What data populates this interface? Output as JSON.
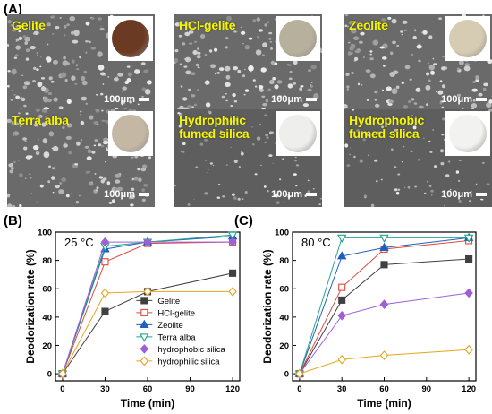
{
  "panel_labels": {
    "a": "(A)",
    "b": "(B)",
    "c": "(C)"
  },
  "sem_images": [
    {
      "label": "Gelite",
      "scale": "100μm",
      "sample_color": "#6b3a22"
    },
    {
      "label": "HCl-gelite",
      "scale": "100μm",
      "sample_color": "#b7b09c"
    },
    {
      "label": "Zeolite",
      "scale": "100μm",
      "sample_color": "#d6ccb4"
    },
    {
      "label": "Terra alba",
      "scale": "100μm",
      "sample_color": "#c4b8a4"
    },
    {
      "label": "Hydrophilic\nfumed silica",
      "scale": "100μm",
      "sample_color": "#eeeeec"
    },
    {
      "label": "Hydrophobic\nfumed silica",
      "scale": "100μm",
      "sample_color": "#f2f2f0"
    }
  ],
  "chart_data": [
    {
      "type": "line",
      "annotation": "25 °C",
      "xlabel": "Time (min)",
      "ylabel": "Deodorization rate (%)",
      "x": [
        0,
        30,
        60,
        120
      ],
      "xticks": [
        0,
        30,
        60,
        90,
        120
      ],
      "yticks": [
        0,
        20,
        40,
        60,
        80,
        100
      ],
      "xlim": [
        -5,
        125
      ],
      "ylim": [
        -5,
        100
      ],
      "legend_position": "bottom-right",
      "series": [
        {
          "name": "Gelite",
          "values": [
            0,
            44,
            58,
            71
          ],
          "color": "#404040",
          "marker": "square",
          "fill": true
        },
        {
          "name": "HCl-gelite",
          "values": [
            0,
            79,
            92,
            93
          ],
          "color": "#e0493e",
          "marker": "square",
          "fill": false
        },
        {
          "name": "Zeolite",
          "values": [
            0,
            88,
            93,
            97
          ],
          "color": "#1f5fbf",
          "marker": "triangle",
          "fill": true
        },
        {
          "name": "Terra alba",
          "values": [
            0,
            90,
            93,
            98
          ],
          "color": "#22a58a",
          "marker": "triangle-down",
          "fill": false
        },
        {
          "name": "hydrophobic silica",
          "values": [
            0,
            93,
            93,
            93
          ],
          "color": "#9f5fd6",
          "marker": "diamond",
          "fill": true
        },
        {
          "name": "hydrophilic silica",
          "values": [
            0,
            57,
            58,
            58
          ],
          "color": "#e6a41e",
          "marker": "diamond",
          "fill": false
        }
      ]
    },
    {
      "type": "line",
      "annotation": "80 °C",
      "xlabel": "Time (min)",
      "ylabel": "Deodorization rate (%)",
      "x": [
        0,
        30,
        60,
        120
      ],
      "xticks": [
        0,
        30,
        60,
        90,
        120
      ],
      "yticks": [
        0,
        20,
        40,
        60,
        80,
        100
      ],
      "xlim": [
        -5,
        125
      ],
      "ylim": [
        -5,
        100
      ],
      "series": [
        {
          "name": "Gelite",
          "values": [
            0,
            52,
            77,
            81
          ],
          "color": "#404040",
          "marker": "square",
          "fill": true
        },
        {
          "name": "HCl-gelite",
          "values": [
            0,
            61,
            88,
            94
          ],
          "color": "#e0493e",
          "marker": "square",
          "fill": false
        },
        {
          "name": "Zeolite",
          "values": [
            0,
            83,
            89,
            96
          ],
          "color": "#1f5fbf",
          "marker": "triangle",
          "fill": true
        },
        {
          "name": "Terra alba",
          "values": [
            0,
            96,
            96,
            96
          ],
          "color": "#22a58a",
          "marker": "triangle-down",
          "fill": false
        },
        {
          "name": "hydrophobic silica",
          "values": [
            0,
            41,
            49,
            57
          ],
          "color": "#9f5fd6",
          "marker": "diamond",
          "fill": true
        },
        {
          "name": "hydrophilic silica",
          "values": [
            0,
            10,
            13,
            17
          ],
          "color": "#e6a41e",
          "marker": "diamond",
          "fill": false
        }
      ]
    }
  ]
}
